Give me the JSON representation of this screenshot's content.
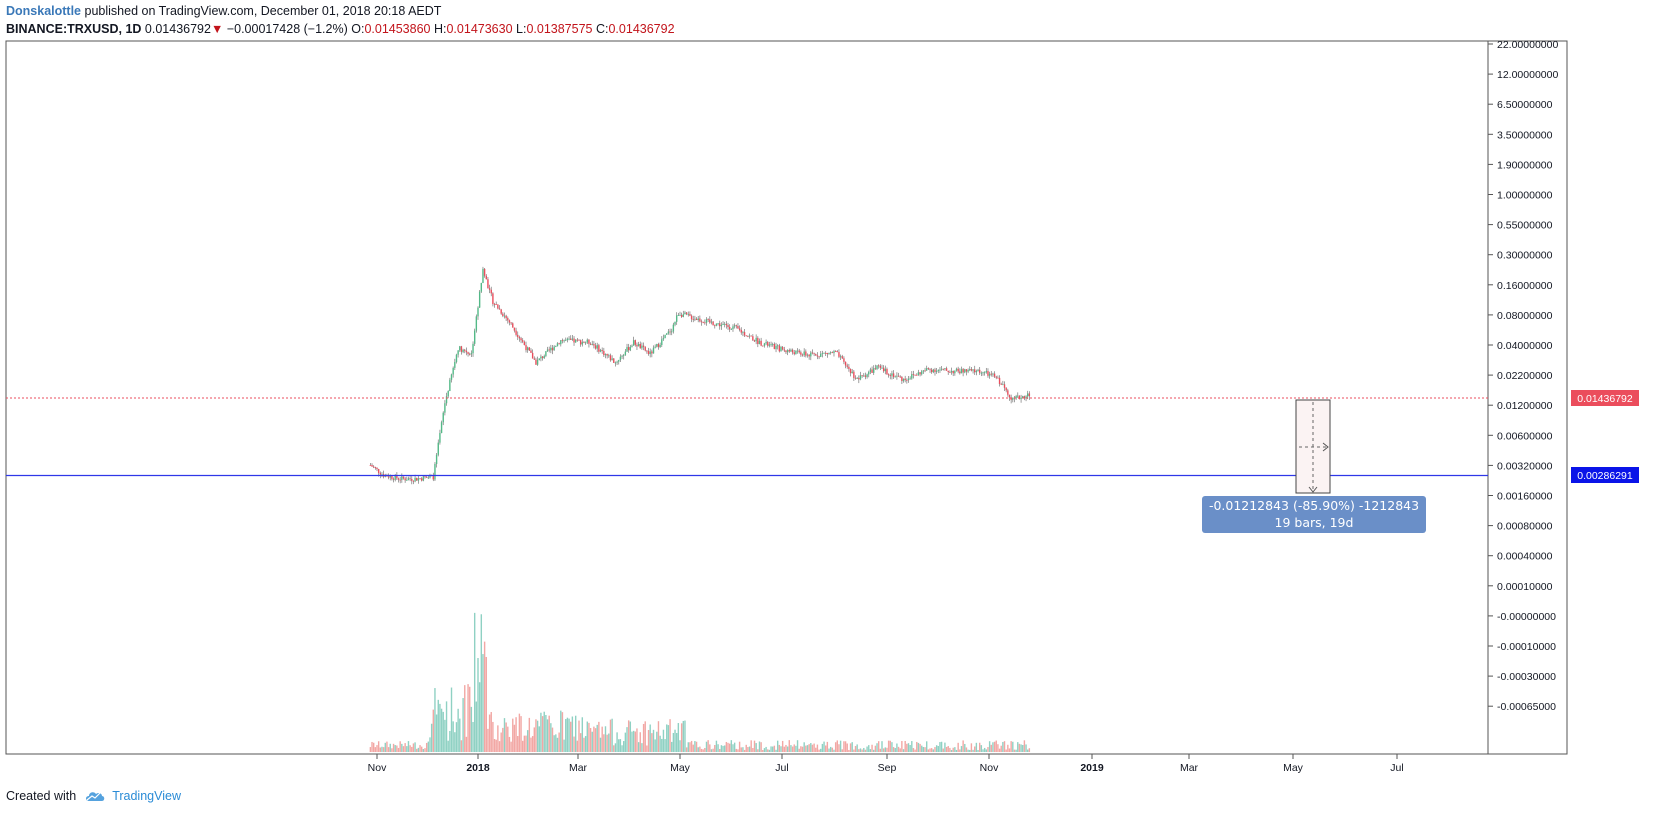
{
  "header": {
    "author": "Donskalottle",
    "published_text": "published on TradingView.com, December 01, 2018 20:18 AEDT",
    "symbol": "BINANCE:TRXUSD, 1D",
    "last": "0.01436792",
    "change_arrow": "▼",
    "change": "−0.00017428 (−1.2%)",
    "o_label": "O:",
    "o_value": "0.01453860",
    "h_label": "H:",
    "h_value": "0.01473630",
    "l_label": "L:",
    "l_value": "0.01387575",
    "c_label": "C:",
    "c_value": "0.01436792"
  },
  "footer": {
    "created_with": "Created with",
    "brand": "TradingView"
  },
  "colors": {
    "up": "#53b987",
    "down": "#eb4d5c",
    "vol_up": "#8fd1c3",
    "vol_down": "#f2a7a4",
    "horizontal_line": "#2f37e8",
    "price_line": "#eb4d5c",
    "measure_box": "#6a8fc8",
    "brand": "#2a8bd6"
  },
  "chart_data": {
    "type": "candlestick",
    "y_scale": "log",
    "x_tick_labels": [
      "Nov",
      "2018",
      "Mar",
      "May",
      "Jul",
      "Sep",
      "Nov",
      "2019",
      "Mar",
      "May",
      "Jul"
    ],
    "y_tick_labels": [
      "22.00000000",
      "12.00000000",
      "6.50000000",
      "3.50000000",
      "1.90000000",
      "1.00000000",
      "0.55000000",
      "0.30000000",
      "0.16000000",
      "0.08000000",
      "0.04000000",
      "0.02200000",
      "0.01200000",
      "0.00600000",
      "0.00320000",
      "0.00160000",
      "0.00080000",
      "0.00040000",
      "0.00010000",
      "-0.00000000",
      "-0.00010000",
      "-0.00030000",
      "-0.00065000"
    ],
    "price_series_path": [
      [
        "2017-10-28",
        0.0031
      ],
      [
        "2017-11-05",
        0.0025
      ],
      [
        "2017-11-15",
        0.0023
      ],
      [
        "2017-11-25",
        0.0023
      ],
      [
        "2017-12-05",
        0.0024
      ],
      [
        "2017-12-12",
        0.012
      ],
      [
        "2017-12-20",
        0.04
      ],
      [
        "2017-12-28",
        0.035
      ],
      [
        "2018-01-04",
        0.22
      ],
      [
        "2018-01-10",
        0.11
      ],
      [
        "2018-01-20",
        0.07
      ],
      [
        "2018-02-05",
        0.029
      ],
      [
        "2018-02-20",
        0.047
      ],
      [
        "2018-03-10",
        0.045
      ],
      [
        "2018-03-25",
        0.029
      ],
      [
        "2018-04-05",
        0.045
      ],
      [
        "2018-04-15",
        0.035
      ],
      [
        "2018-04-28",
        0.06
      ],
      [
        "2018-05-02",
        0.085
      ],
      [
        "2018-05-20",
        0.07
      ],
      [
        "2018-06-05",
        0.062
      ],
      [
        "2018-06-20",
        0.045
      ],
      [
        "2018-07-05",
        0.038
      ],
      [
        "2018-07-20",
        0.034
      ],
      [
        "2018-08-05",
        0.036
      ],
      [
        "2018-08-18",
        0.02
      ],
      [
        "2018-08-30",
        0.026
      ],
      [
        "2018-09-15",
        0.02
      ],
      [
        "2018-09-30",
        0.025
      ],
      [
        "2018-10-15",
        0.024
      ],
      [
        "2018-10-31",
        0.024
      ],
      [
        "2018-11-10",
        0.021
      ],
      [
        "2018-11-20",
        0.013
      ],
      [
        "2018-11-30",
        0.0144
      ]
    ],
    "last_price_label": "0.01436792",
    "horizontal_line_label": "0.00286291",
    "measure": {
      "line1": "-0.01212843 (-85.90%) -1212843",
      "line2": "19 bars, 19d"
    }
  }
}
